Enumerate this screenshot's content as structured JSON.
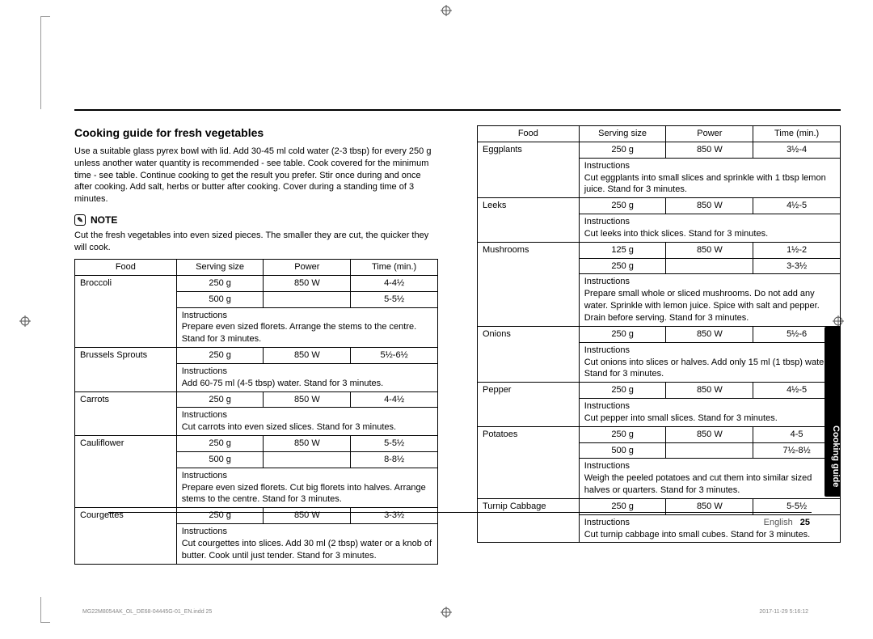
{
  "section": {
    "title": "Cooking guide for fresh vegetables",
    "intro": "Use a suitable glass pyrex bowl with lid. Add 30-45 ml cold water (2-3 tbsp) for every 250 g unless another water quantity is recommended - see table. Cook covered for the minimum time - see table. Continue cooking to get the result you prefer. Stir once during and once after cooking. Add salt, herbs or butter after cooking. Cover during a standing time of 3 minutes.",
    "note_label": "NOTE",
    "note_text": "Cut the fresh vegetables into even sized pieces. The smaller they are cut, the quicker they will cook."
  },
  "headers": {
    "food": "Food",
    "serving": "Serving size",
    "power": "Power",
    "time": "Time (min.)",
    "instructions": "Instructions"
  },
  "left_items": [
    {
      "food": "Broccoli",
      "rows": [
        {
          "serving": "250 g",
          "power": "850 W",
          "time": "4-4½"
        },
        {
          "serving": "500 g",
          "power": "",
          "time": "5-5½"
        }
      ],
      "instructions": "Prepare even sized florets. Arrange the stems to the centre. Stand for 3 minutes."
    },
    {
      "food": "Brussels Sprouts",
      "rows": [
        {
          "serving": "250 g",
          "power": "850 W",
          "time": "5½-6½"
        }
      ],
      "instructions": "Add 60-75 ml (4-5 tbsp) water. Stand for 3 minutes."
    },
    {
      "food": "Carrots",
      "rows": [
        {
          "serving": "250 g",
          "power": "850 W",
          "time": "4-4½"
        }
      ],
      "instructions": "Cut carrots into even sized slices. Stand for 3 minutes."
    },
    {
      "food": "Cauliflower",
      "rows": [
        {
          "serving": "250 g",
          "power": "850 W",
          "time": "5-5½"
        },
        {
          "serving": "500 g",
          "power": "",
          "time": "8-8½"
        }
      ],
      "instructions": "Prepare even sized florets. Cut big florets into halves. Arrange stems to the centre. Stand for 3 minutes."
    },
    {
      "food": "Courgettes",
      "rows": [
        {
          "serving": "250 g",
          "power": "850 W",
          "time": "3-3½"
        }
      ],
      "instructions": "Cut courgettes into slices. Add 30 ml (2 tbsp) water or a knob of butter. Cook until just tender. Stand for 3 minutes."
    }
  ],
  "right_items": [
    {
      "food": "Eggplants",
      "rows": [
        {
          "serving": "250 g",
          "power": "850 W",
          "time": "3½-4"
        }
      ],
      "instructions": "Cut eggplants into small slices and sprinkle with 1 tbsp lemon juice. Stand for 3 minutes."
    },
    {
      "food": "Leeks",
      "rows": [
        {
          "serving": "250 g",
          "power": "850 W",
          "time": "4½-5"
        }
      ],
      "instructions": "Cut leeks into thick slices. Stand for 3 minutes."
    },
    {
      "food": "Mushrooms",
      "rows": [
        {
          "serving": "125 g",
          "power": "850 W",
          "time": "1½-2"
        },
        {
          "serving": "250 g",
          "power": "",
          "time": "3-3½"
        }
      ],
      "instructions": "Prepare small whole or sliced mushrooms. Do not add any water. Sprinkle with lemon juice. Spice with salt and pepper. Drain before serving. Stand for 3 minutes."
    },
    {
      "food": "Onions",
      "rows": [
        {
          "serving": "250 g",
          "power": "850 W",
          "time": "5½-6"
        }
      ],
      "instructions": "Cut onions into slices or halves. Add only 15 ml (1 tbsp) water. Stand for 3 minutes."
    },
    {
      "food": "Pepper",
      "rows": [
        {
          "serving": "250 g",
          "power": "850 W",
          "time": "4½-5"
        }
      ],
      "instructions": "Cut pepper into small slices. Stand for 3 minutes."
    },
    {
      "food": "Potatoes",
      "rows": [
        {
          "serving": "250 g",
          "power": "850 W",
          "time": "4-5"
        },
        {
          "serving": "500 g",
          "power": "",
          "time": "7½-8½"
        }
      ],
      "instructions": "Weigh the peeled potatoes and cut them into similar sized halves or quarters. Stand for 3 minutes."
    },
    {
      "food": "Turnip Cabbage",
      "rows": [
        {
          "serving": "250 g",
          "power": "850 W",
          "time": "5-5½"
        }
      ],
      "instructions": "Cut turnip cabbage into small cubes. Stand for 3 minutes."
    }
  ],
  "sidebar_tab": "Cooking guide",
  "footer": {
    "lang": "English",
    "page": "25"
  },
  "tiny": {
    "left": "MG22M8054AK_OL_DE68-04445G-01_EN.indd   25",
    "right": "2017-11-29   5:16:12"
  },
  "style": {
    "col_widths": [
      "28%",
      "24%",
      "24%",
      "24%"
    ],
    "border_color": "#000000",
    "font_size_body": 11,
    "font_size_title": 14
  }
}
